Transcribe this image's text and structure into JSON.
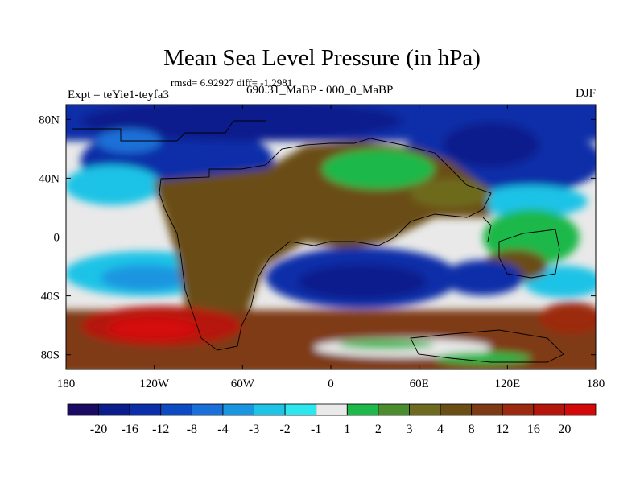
{
  "title": "Mean Sea Level Pressure (in hPa)",
  "stats_line": "rmsd= 6.92927 diff= -1.2981",
  "experiment_line": "Expt = teYie1-teyfa3",
  "periods_line": "690.31_MaBP - 000_0_MaBP",
  "season": "DJF",
  "map": {
    "lon_range": [
      -180,
      180
    ],
    "lat_range": [
      -90,
      90
    ],
    "x_ticks": [
      {
        "value": -180,
        "label": "180"
      },
      {
        "value": -120,
        "label": "120W"
      },
      {
        "value": -60,
        "label": "60W"
      },
      {
        "value": 0,
        "label": "0"
      },
      {
        "value": 60,
        "label": "60E"
      },
      {
        "value": 120,
        "label": "120E"
      },
      {
        "value": 180,
        "label": "180"
      }
    ],
    "y_ticks": [
      {
        "value": 80,
        "label": "80N"
      },
      {
        "value": 40,
        "label": "40N"
      },
      {
        "value": 0,
        "label": "0"
      },
      {
        "value": -40,
        "label": "40S"
      },
      {
        "value": -80,
        "label": "80S"
      }
    ]
  },
  "colorbar": {
    "colors": [
      "#1a0a63",
      "#0b1c8c",
      "#0a2fa8",
      "#0d4bc2",
      "#1a6fd8",
      "#1a95e0",
      "#1ec3e6",
      "#2ee6ee",
      "#e9e9e9",
      "#1fb84a",
      "#4a8c2e",
      "#6e6a1f",
      "#6a4e14",
      "#7e3a12",
      "#9c2a10",
      "#b5160c",
      "#d40a0a"
    ],
    "labels": [
      "-20",
      "-16",
      "-12",
      "-8",
      "-4",
      "-3",
      "-2",
      "-1",
      "1",
      "2",
      "3",
      "4",
      "8",
      "12",
      "16",
      "20"
    ]
  }
}
